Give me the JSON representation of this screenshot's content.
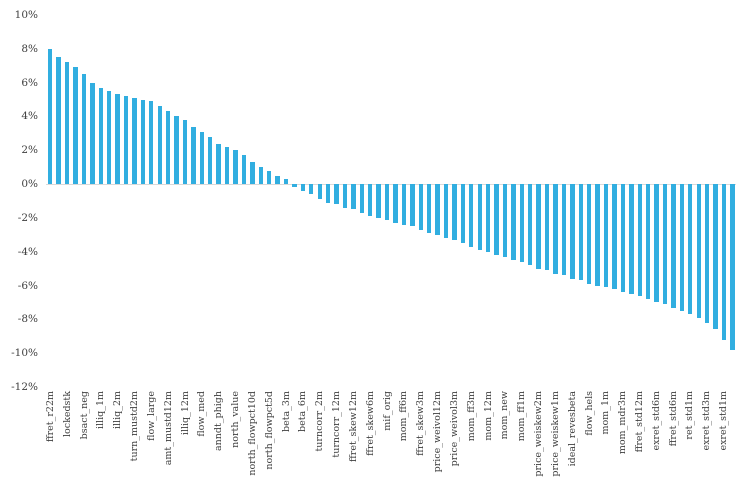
{
  "chart_data": {
    "type": "bar",
    "title": "",
    "xlabel": "",
    "ylabel": "",
    "ylim": [
      -12,
      10
    ],
    "ytick_step_percent": 2,
    "y_ticks": [
      "10%",
      "8%",
      "6%",
      "4%",
      "2%",
      "0%",
      "-2%",
      "-4%",
      "-6%",
      "-8%",
      "-10%",
      "-12%"
    ],
    "grid": "off",
    "legend": "none",
    "bar_color": "#31aee0",
    "axis_text_color": "#404040",
    "x_label_every": 2,
    "x_labels": [
      "ffret_r22m",
      "lockedstk",
      "bsact_neg",
      "illiq_1m",
      "illiq_2m",
      "turn_mustd2m",
      "flow_large",
      "amt_mustd12m",
      "illiq_12m",
      "flow_med",
      "anndt_phigh",
      "north_value",
      "north_flowpct10d",
      "north_flowpct5d",
      "beta_3m",
      "beta_6m",
      "turncorr_2m",
      "turncorr_12m",
      "ffret_skew12m",
      "ffret_skew6m",
      "mif_orig",
      "mom_ff6m",
      "ffret_skew3m",
      "price_weivol12m",
      "price_weivol3m",
      "mom_ff3m",
      "mom_12m",
      "mom_new",
      "mom_ff1m",
      "price_weiskew2m",
      "price_weiskew1m",
      "ideal_revesbeta",
      "flow_hels",
      "mom_1m",
      "mom_mdr3m",
      "ffret_std12m",
      "exret_std6m",
      "ffret_std6m",
      "ret_std1m",
      "exret_std3m",
      "exret_std1m"
    ],
    "values_percent": [
      8.0,
      7.5,
      7.2,
      6.9,
      6.5,
      6.0,
      5.7,
      5.5,
      5.3,
      5.2,
      5.1,
      5.0,
      4.9,
      4.6,
      4.3,
      4.0,
      3.8,
      3.4,
      3.1,
      2.8,
      2.4,
      2.2,
      2.0,
      1.7,
      1.3,
      1.0,
      0.8,
      0.5,
      0.3,
      -0.2,
      -0.4,
      -0.6,
      -0.9,
      -1.1,
      -1.2,
      -1.4,
      -1.5,
      -1.7,
      -1.9,
      -2.0,
      -2.1,
      -2.3,
      -2.4,
      -2.5,
      -2.7,
      -2.9,
      -3.0,
      -3.2,
      -3.3,
      -3.5,
      -3.7,
      -3.9,
      -4.0,
      -4.2,
      -4.3,
      -4.5,
      -4.6,
      -4.8,
      -5.0,
      -5.1,
      -5.3,
      -5.4,
      -5.6,
      -5.7,
      -5.9,
      -6.0,
      -6.1,
      -6.2,
      -6.4,
      -6.5,
      -6.6,
      -6.8,
      -7.0,
      -7.1,
      -7.3,
      -7.5,
      -7.7,
      -7.9,
      -8.2,
      -8.6,
      -9.2,
      -9.8
    ]
  }
}
